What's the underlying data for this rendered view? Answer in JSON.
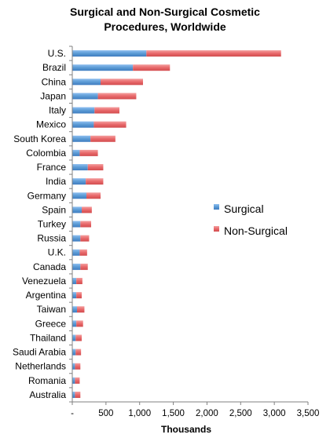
{
  "chart_data": {
    "type": "bar",
    "orientation": "horizontal",
    "stacked": true,
    "title_lines": [
      "Surgical and Non-Surgical Cosmetic",
      "Procedures, Worldwide"
    ],
    "xlabel": "Thousands",
    "ylabel": "",
    "xlim": [
      0,
      3500
    ],
    "xticks": [
      0,
      500,
      1000,
      1500,
      2000,
      2500,
      3000,
      3500
    ],
    "xtick_labels": [
      "-",
      "500",
      "1,000",
      "1,500",
      "2,000",
      "2,500",
      "3,000",
      "3,500"
    ],
    "grid": false,
    "legend_position": "right",
    "categories": [
      "U.S.",
      "Brazil",
      "China",
      "Japan",
      "Italy",
      "Mexico",
      "South Korea",
      "Colombia",
      "France",
      "India",
      "Germany",
      "Spain",
      "Turkey",
      "Russia",
      "U.K.",
      "Canada",
      "Venezuela",
      "Argentina",
      "Taiwan",
      "Greece",
      "Thailand",
      "Saudi Arabia",
      "Netherlands",
      "Romania",
      "Australia"
    ],
    "series": [
      {
        "name": "Surgical",
        "color": "#5b9bd5",
        "values": [
          1100,
          900,
          420,
          380,
          330,
          320,
          270,
          110,
          230,
          200,
          210,
          140,
          120,
          120,
          110,
          120,
          60,
          60,
          70,
          60,
          50,
          50,
          40,
          40,
          40
        ]
      },
      {
        "name": "Non-Surgical",
        "color": "#e8686a",
        "values": [
          2000,
          550,
          630,
          570,
          370,
          480,
          370,
          270,
          230,
          260,
          210,
          150,
          160,
          130,
          110,
          110,
          90,
          80,
          110,
          100,
          90,
          80,
          80,
          70,
          80
        ]
      }
    ]
  }
}
